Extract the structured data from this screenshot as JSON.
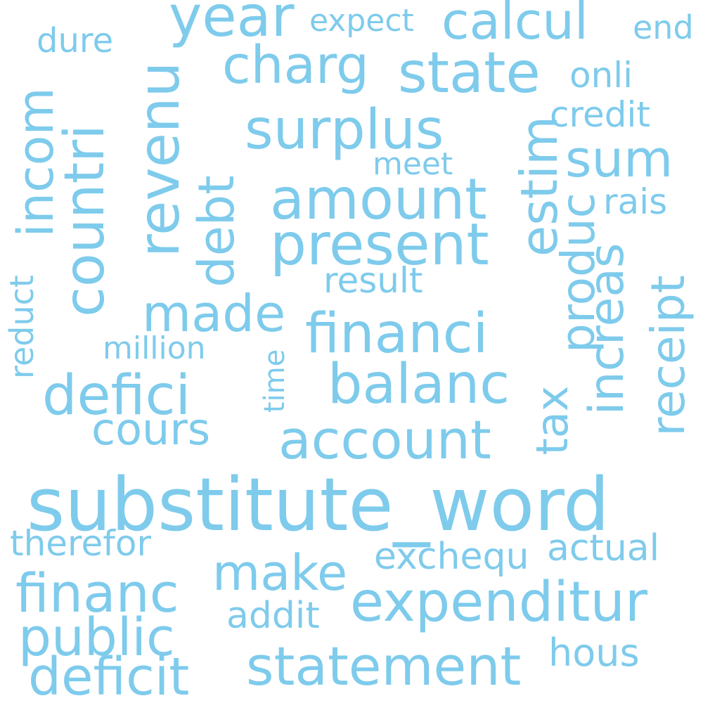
{
  "words": {
    "substitute_word": "substitute_word",
    "year": "year",
    "expect": "expect",
    "calcul": "calcul",
    "end": "end",
    "dure": "dure",
    "charg": "charg",
    "state": "state",
    "onli": "onli",
    "credit": "credit",
    "surplus": "surplus",
    "sum": "sum",
    "meet": "meet",
    "rais": "rais",
    "amount": "amount",
    "present": "present",
    "result": "result",
    "made": "made",
    "financi": "financi",
    "million": "million",
    "balanc": "balanc",
    "defici": "defici",
    "cours": "cours",
    "account": "account",
    "therefor": "therefor",
    "exchequ": "exchequ",
    "actual": "actual",
    "make": "make",
    "financ": "financ",
    "expenditur": "expenditur",
    "addit": "addit",
    "public": "public",
    "hous": "hous",
    "deficit": "deficit",
    "statement": "statement",
    "revenu": "revenu",
    "countri": "countri",
    "incom": "incom",
    "debt": "debt",
    "estim": "estim",
    "produc": "produc",
    "increas": "increas",
    "receipt": "receipt",
    "tax": "tax",
    "time": "time",
    "reduct": "reduct"
  },
  "color": "#7ecbec",
  "background": "#ffffff"
}
